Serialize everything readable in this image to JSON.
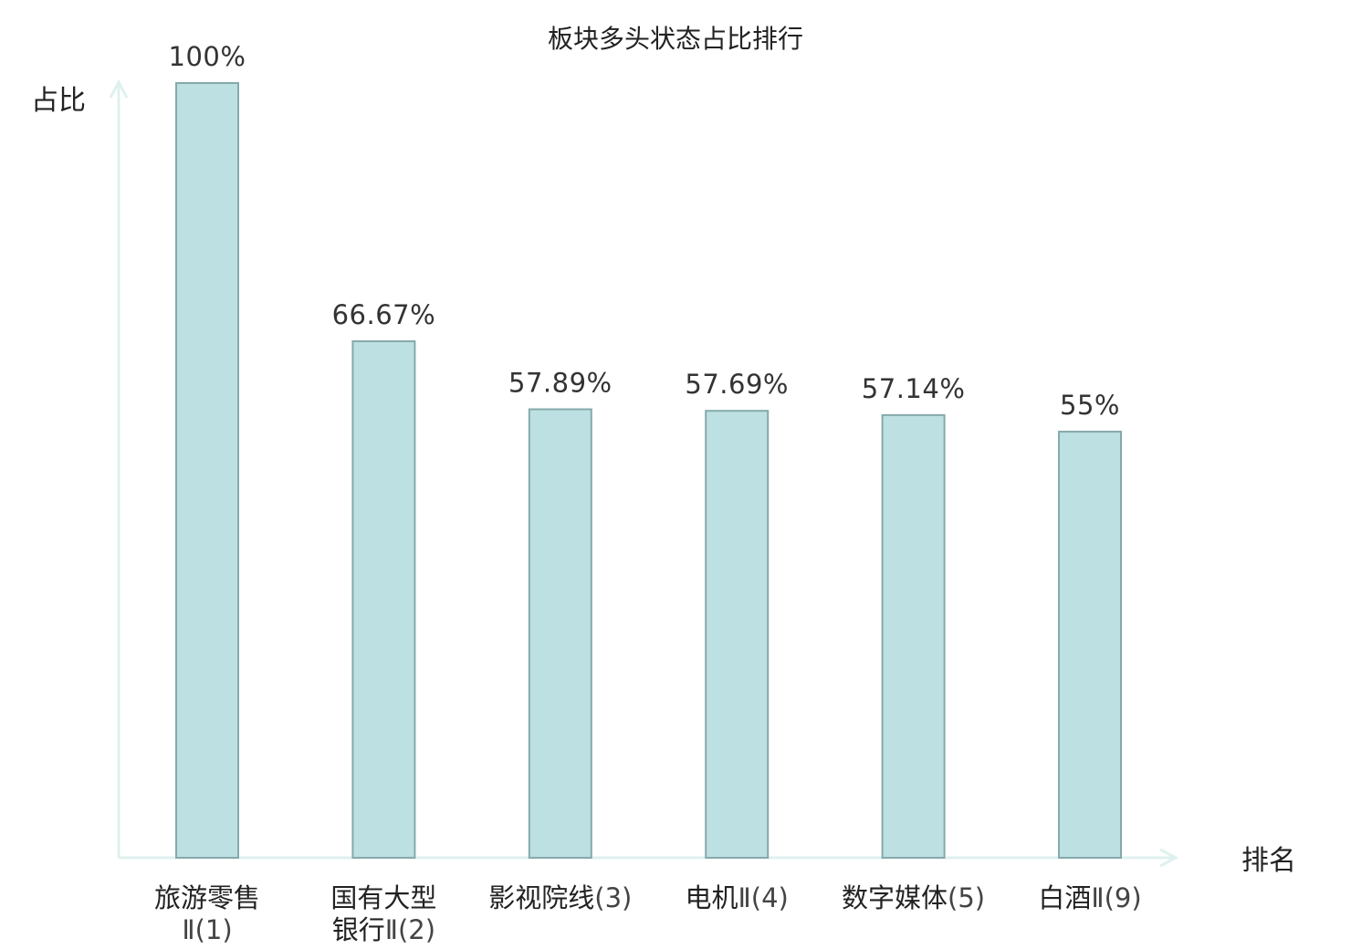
{
  "chart_data": {
    "type": "bar",
    "title": "板块多头状态占比排行",
    "xlabel": "排名",
    "ylabel": "占比",
    "ylim": [
      0,
      100
    ],
    "grid": false,
    "categories": [
      {
        "name": "旅游零售",
        "rank": "Ⅱ(1)",
        "lines": [
          "旅游零售",
          "Ⅱ(1)"
        ],
        "highlight": false
      },
      {
        "name": "国有大型银行",
        "rank": "Ⅱ(2)",
        "lines": [
          "国有大型",
          "银行Ⅱ(2)"
        ],
        "highlight": false
      },
      {
        "name": "影视院线",
        "rank": "(3)",
        "lines": [
          "影视院线(3)"
        ],
        "highlight": false
      },
      {
        "name": "电机",
        "rank": "Ⅱ(4)",
        "lines": [
          "电机Ⅱ(4)"
        ],
        "highlight": false
      },
      {
        "name": "数字媒体",
        "rank": "(5)",
        "lines": [
          "数字媒体(5)"
        ],
        "highlight": false
      },
      {
        "name": "白酒",
        "rank": "Ⅱ(9)",
        "lines": [
          "白酒Ⅱ(9)"
        ],
        "highlight": true
      }
    ],
    "values": [
      100,
      66.67,
      57.89,
      57.69,
      57.14,
      55
    ],
    "value_labels": [
      "100%",
      "66.67%",
      "57.89%",
      "57.69%",
      "57.14%",
      "55%"
    ]
  },
  "colors": {
    "bar_fill": "#bde0e2",
    "bar_stroke": "#86a9ab",
    "axis": "#dff1ef",
    "highlight_text": "#e02020",
    "text": "#222222"
  }
}
